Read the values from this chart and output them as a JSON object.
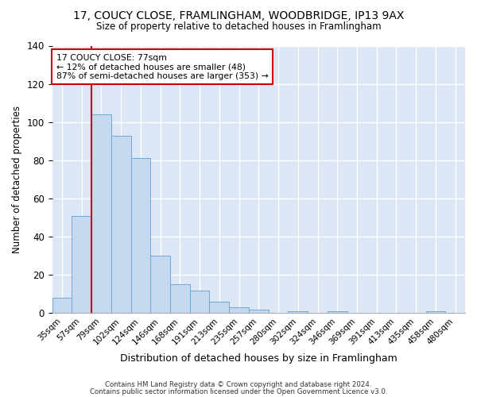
{
  "title1": "17, COUCY CLOSE, FRAMLINGHAM, WOODBRIDGE, IP13 9AX",
  "title2": "Size of property relative to detached houses in Framlingham",
  "xlabel": "Distribution of detached houses by size in Framlingham",
  "ylabel": "Number of detached properties",
  "categories": [
    "35sqm",
    "57sqm",
    "79sqm",
    "102sqm",
    "124sqm",
    "146sqm",
    "168sqm",
    "191sqm",
    "213sqm",
    "235sqm",
    "257sqm",
    "280sqm",
    "302sqm",
    "324sqm",
    "346sqm",
    "369sqm",
    "391sqm",
    "413sqm",
    "435sqm",
    "458sqm",
    "480sqm"
  ],
  "values": [
    8,
    51,
    104,
    93,
    81,
    30,
    15,
    12,
    6,
    3,
    2,
    0,
    1,
    0,
    1,
    0,
    0,
    0,
    0,
    1,
    0
  ],
  "bar_color": "#c5d8f0",
  "bar_edge_color": "#6aaad4",
  "bg_color": "#dce6f5",
  "grid_color": "#ffffff",
  "fig_bg_color": "#ffffff",
  "vline_color": "#cc0000",
  "annotation_title": "17 COUCY CLOSE: 77sqm",
  "annotation_line1": "← 12% of detached houses are smaller (48)",
  "annotation_line2": "87% of semi-detached houses are larger (353) →",
  "annotation_box_color": "#ffffff",
  "annotation_box_edge": "#cc0000",
  "footer1": "Contains HM Land Registry data © Crown copyright and database right 2024.",
  "footer2": "Contains public sector information licensed under the Open Government Licence v3.0.",
  "ylim": [
    0,
    140
  ]
}
